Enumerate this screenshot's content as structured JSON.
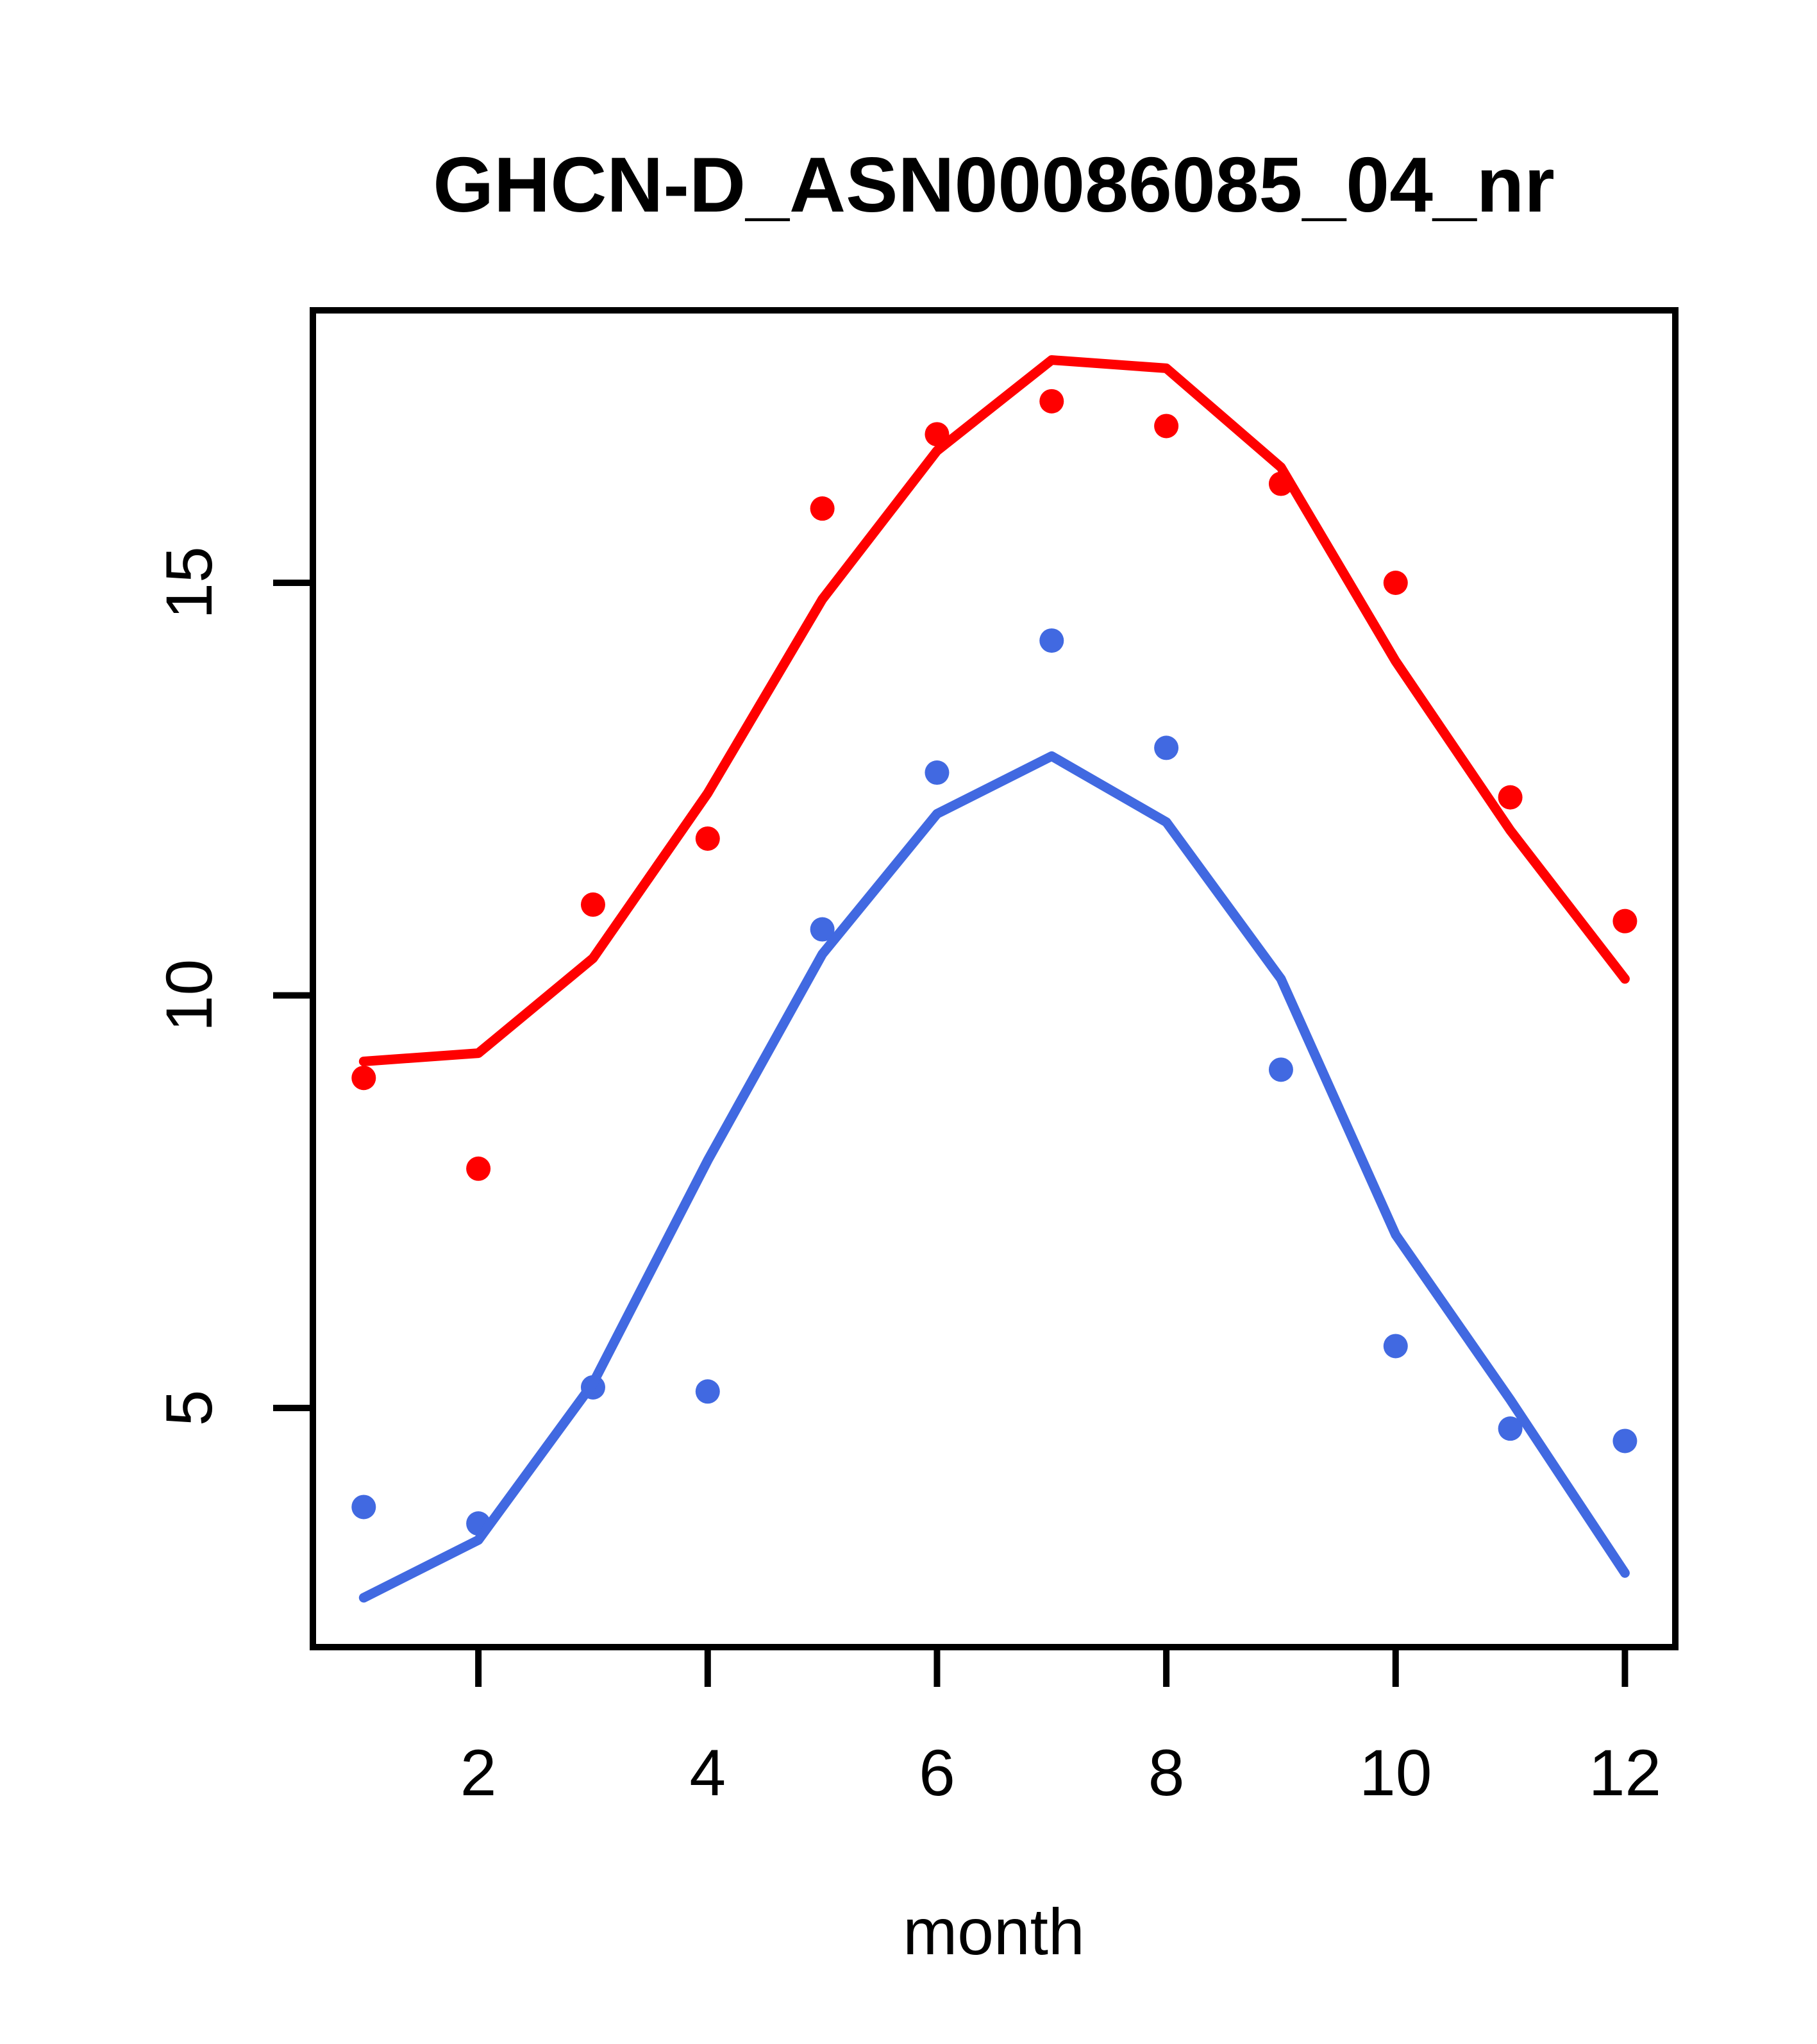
{
  "chart_data": {
    "type": "scatter",
    "title": "GHCN-D_ASN00086085_04_nr",
    "xlabel": "month",
    "ylabel": "",
    "x": [
      1,
      2,
      3,
      4,
      5,
      6,
      7,
      8,
      9,
      10,
      11,
      12
    ],
    "x_ticks": [
      2,
      4,
      6,
      8,
      10,
      12
    ],
    "y_ticks": [
      5,
      10,
      15
    ],
    "xlim": [
      0.56,
      12.44
    ],
    "ylim": [
      2.1,
      18.3
    ],
    "grid": false,
    "legend": "none",
    "frame": "box",
    "colors": {
      "red": "#FF0000",
      "blue": "#4169E1",
      "axis": "#000000",
      "background": "#FFFFFF"
    },
    "series": [
      {
        "name": "red-points",
        "type": "points",
        "color": "#FF0000",
        "values": [
          9.0,
          7.9,
          11.1,
          11.9,
          15.9,
          16.8,
          17.2,
          16.9,
          16.2,
          15.0,
          12.4,
          10.9
        ]
      },
      {
        "name": "red-line",
        "type": "line",
        "color": "#FF0000",
        "values": [
          9.2,
          9.3,
          10.45,
          12.45,
          14.8,
          16.6,
          17.7,
          17.6,
          16.4,
          14.05,
          12.0,
          10.2
        ]
      },
      {
        "name": "blue-points",
        "type": "points",
        "color": "#4169E1",
        "values": [
          3.8,
          3.6,
          5.25,
          5.2,
          10.8,
          12.7,
          14.3,
          13.0,
          9.1,
          5.75,
          4.75,
          4.6
        ]
      },
      {
        "name": "blue-line",
        "type": "line",
        "color": "#4169E1",
        "values": [
          2.7,
          3.4,
          5.3,
          8.0,
          10.5,
          12.2,
          12.9,
          12.1,
          10.2,
          7.1,
          5.1,
          3.0
        ]
      }
    ]
  }
}
